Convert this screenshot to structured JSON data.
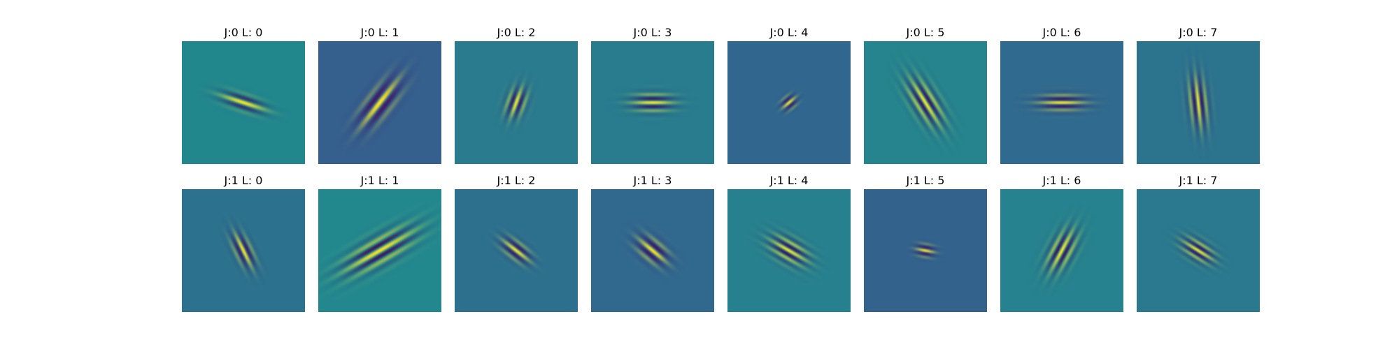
{
  "chart_data": {
    "type": "heatmap",
    "colormap": "viridis",
    "grid": false,
    "legend": "none",
    "panels": [
      {
        "title": "J:0 L: 0",
        "j": 0,
        "l": 0,
        "background": "#22868d",
        "angle_deg": 18,
        "sigma_major": 22,
        "sigma_minor": 7,
        "wavelength": 14
      },
      {
        "title": "J:0 L: 1",
        "j": 0,
        "l": 1,
        "background": "#355f8d",
        "angle_deg": -52,
        "sigma_major": 28,
        "sigma_minor": 11,
        "wavelength": 18
      },
      {
        "title": "J:0 L: 2",
        "j": 0,
        "l": 2,
        "background": "#2a7b8e",
        "angle_deg": -70,
        "sigma_major": 15,
        "sigma_minor": 9,
        "wavelength": 12
      },
      {
        "title": "J:0 L: 3",
        "j": 0,
        "l": 3,
        "background": "#287c8e",
        "angle_deg": 0,
        "sigma_major": 20,
        "sigma_minor": 9,
        "wavelength": 12
      },
      {
        "title": "J:0 L: 4",
        "j": 0,
        "l": 4,
        "background": "#31678e",
        "angle_deg": -40,
        "sigma_major": 8,
        "sigma_minor": 6,
        "wavelength": 10
      },
      {
        "title": "J:0 L: 5",
        "j": 0,
        "l": 5,
        "background": "#25848e",
        "angle_deg": 58,
        "sigma_major": 26,
        "sigma_minor": 12,
        "wavelength": 12
      },
      {
        "title": "J:0 L: 6",
        "j": 0,
        "l": 6,
        "background": "#306a8e",
        "angle_deg": 0,
        "sigma_major": 22,
        "sigma_minor": 8,
        "wavelength": 11
      },
      {
        "title": "J:0 L: 7",
        "j": 0,
        "l": 7,
        "background": "#2c738e",
        "angle_deg": 84,
        "sigma_major": 25,
        "sigma_minor": 9,
        "wavelength": 11
      },
      {
        "title": "J:1 L: 0",
        "j": 1,
        "l": 0,
        "background": "#2c718e",
        "angle_deg": 64,
        "sigma_major": 18,
        "sigma_minor": 8,
        "wavelength": 12
      },
      {
        "title": "J:1 L: 1",
        "j": 1,
        "l": 1,
        "background": "#23888e",
        "angle_deg": -30,
        "sigma_major": 38,
        "sigma_minor": 13,
        "wavelength": 15
      },
      {
        "title": "J:1 L: 2",
        "j": 1,
        "l": 2,
        "background": "#2d708e",
        "angle_deg": 38,
        "sigma_major": 16,
        "sigma_minor": 8,
        "wavelength": 12
      },
      {
        "title": "J:1 L: 3",
        "j": 1,
        "l": 3,
        "background": "#31688e",
        "angle_deg": 40,
        "sigma_major": 17,
        "sigma_minor": 10,
        "wavelength": 14
      },
      {
        "title": "J:1 L: 4",
        "j": 1,
        "l": 4,
        "background": "#27808e",
        "angle_deg": 30,
        "sigma_major": 20,
        "sigma_minor": 11,
        "wavelength": 11
      },
      {
        "title": "J:1 L: 5",
        "j": 1,
        "l": 5,
        "background": "#33638d",
        "angle_deg": 10,
        "sigma_major": 9,
        "sigma_minor": 6,
        "wavelength": 10
      },
      {
        "title": "J:1 L: 6",
        "j": 1,
        "l": 6,
        "background": "#26828e",
        "angle_deg": -62,
        "sigma_major": 22,
        "sigma_minor": 11,
        "wavelength": 12
      },
      {
        "title": "J:1 L: 7",
        "j": 1,
        "l": 7,
        "background": "#2a798e",
        "angle_deg": 32,
        "sigma_major": 17,
        "sigma_minor": 9,
        "wavelength": 10
      }
    ]
  }
}
